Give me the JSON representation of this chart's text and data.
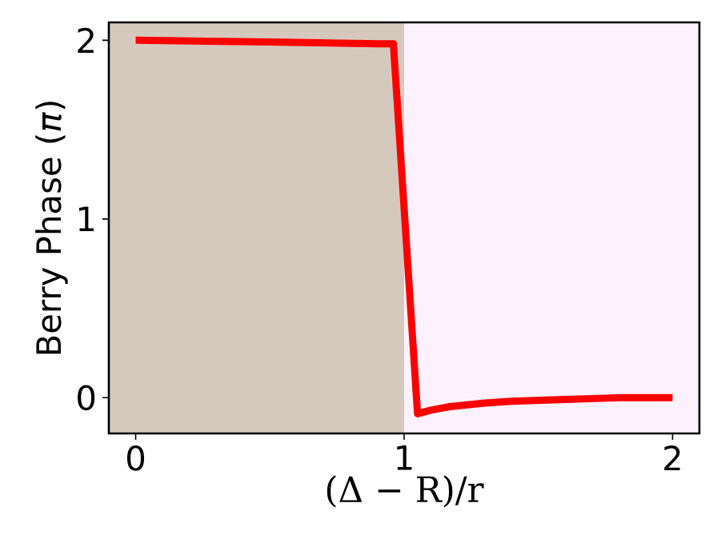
{
  "chart_data": {
    "type": "line",
    "xlabel": "(Δ − R)/r",
    "ylabel": "Berry Phase (*π*)",
    "x": [
      0,
      0.5,
      0.9,
      0.96,
      1.05,
      1.1,
      1.17,
      1.3,
      1.4,
      1.6,
      1.8,
      2
    ],
    "series": [
      {
        "color": "#ff0000",
        "values": [
          2,
          1.99,
          1.98,
          1.98,
          -0.09,
          -0.07,
          -0.05,
          -0.03,
          -0.02,
          -0.01,
          0,
          0
        ]
      }
    ],
    "xlim": [
      -0.1,
      2.1
    ],
    "ylim": [
      -0.2,
      2.1
    ],
    "xticks": [
      0,
      1,
      2
    ],
    "yticks": [
      0,
      1,
      2
    ],
    "bands": [
      {
        "axis": "x",
        "from": -0.1,
        "to": 1,
        "color": "#d5c9bd"
      },
      {
        "axis": "x",
        "from": 1,
        "to": 2.1,
        "color": "#fdf1fd"
      }
    ],
    "grid": false,
    "marker": "none",
    "line_style": "solid"
  }
}
